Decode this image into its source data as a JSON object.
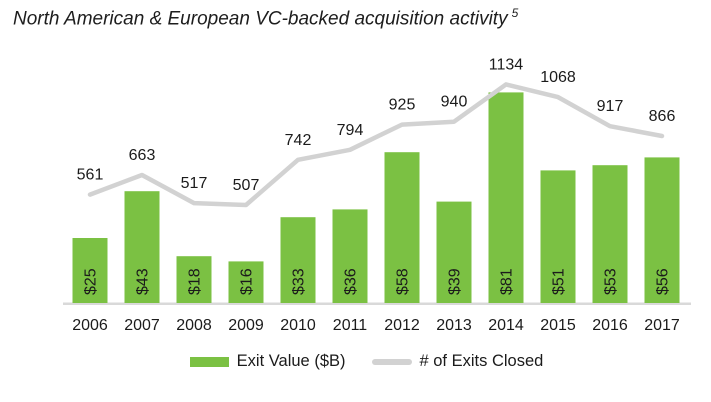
{
  "title": {
    "text": "North American & European VC-backed acquisition activity",
    "footnote_marker": "5"
  },
  "chart_data": {
    "type": "combo-bar-line",
    "categories": [
      "2006",
      "2007",
      "2008",
      "2009",
      "2010",
      "2011",
      "2012",
      "2013",
      "2014",
      "2015",
      "2016",
      "2017"
    ],
    "series": [
      {
        "name": "Exit Value ($B)",
        "type": "bar",
        "color": "#7BC143",
        "values": [
          25,
          43,
          18,
          16,
          33,
          36,
          58,
          39,
          81,
          51,
          53,
          56
        ],
        "data_labels": [
          "$25",
          "$43",
          "$18",
          "$16",
          "$33",
          "$36",
          "$58",
          "$39",
          "$81",
          "$51",
          "$53",
          "$56"
        ],
        "label_position": "inside-bottom-rotated"
      },
      {
        "name": "# of Exits Closed",
        "type": "line",
        "color": "#D2D2D2",
        "values": [
          561,
          663,
          517,
          507,
          742,
          794,
          925,
          940,
          1134,
          1068,
          917,
          866
        ],
        "label_position": "above"
      }
    ],
    "axis_line_color": "#D9D9D9",
    "label_text_color": "#1B1B1B",
    "grid": false,
    "y_axis_visible": false,
    "legend_position": "bottom",
    "bar_axis_range_implied": [
      0,
      90
    ],
    "line_axis_range_implied": [
      400,
      1200
    ]
  },
  "legend": {
    "items": [
      {
        "label": "Exit Value ($B)",
        "swatch": "bar"
      },
      {
        "label": "# of Exits Closed",
        "swatch": "line"
      }
    ]
  }
}
